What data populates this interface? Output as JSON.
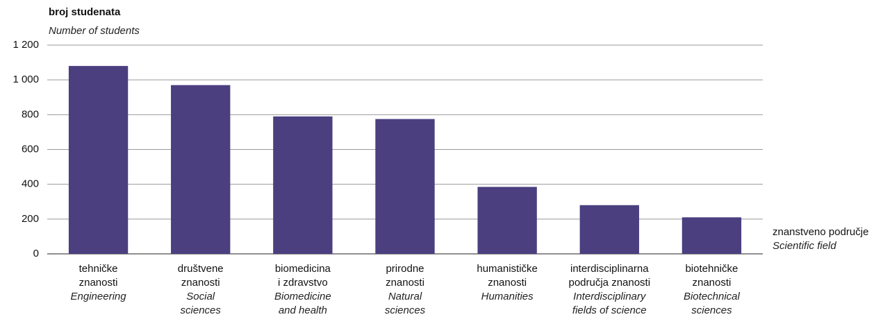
{
  "chart_data": {
    "type": "bar",
    "y_label": "broj studenata",
    "y_label_en": "Number of students",
    "x_label": "znanstveno područje",
    "x_label_en": "Scientific field",
    "categories": [
      [
        "tehničke",
        "znanosti"
      ],
      [
        "društvene",
        "znanosti"
      ],
      [
        "biomedicina",
        "i zdravstvo"
      ],
      [
        "prirodne",
        "znanosti"
      ],
      [
        "humanističke",
        "znanosti"
      ],
      [
        "interdisciplinarna",
        "područja znanosti"
      ],
      [
        "biotehničke",
        "znanosti"
      ]
    ],
    "categories_en": [
      [
        "Engineering"
      ],
      [
        "Social",
        "sciences"
      ],
      [
        "Biomedicine",
        "and health"
      ],
      [
        "Natural",
        "sciences"
      ],
      [
        "Humanities"
      ],
      [
        "Interdisciplinary",
        "fields of science"
      ],
      [
        "Biotechnical",
        "sciences"
      ]
    ],
    "values": [
      1080,
      970,
      790,
      775,
      385,
      280,
      210
    ],
    "color": "#4b3f80",
    "ylim": [
      0,
      1200
    ],
    "yticks": [
      0,
      200,
      400,
      600,
      800,
      {
        "value": 1000,
        "label": "1 000"
      },
      {
        "value": 1200,
        "label": "1 200"
      }
    ],
    "grid": true
  }
}
